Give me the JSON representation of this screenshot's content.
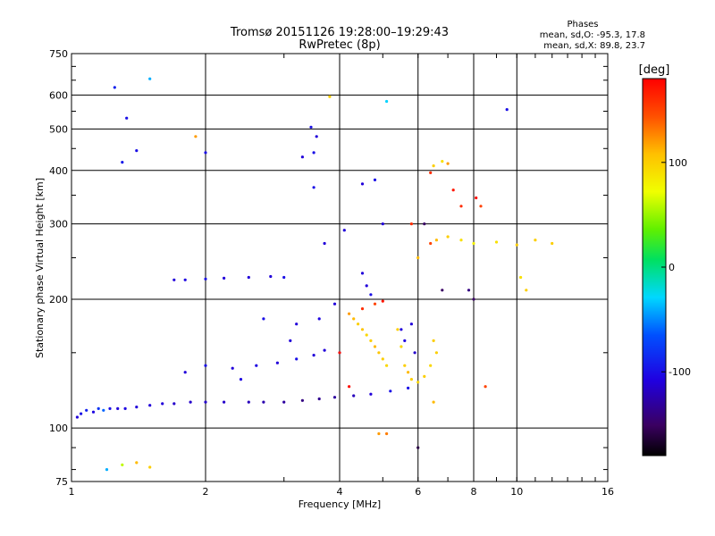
{
  "chart_data": {
    "type": "scatter",
    "title": "Tromsø 20151126 19:28:00–19:29:43",
    "subtitle": "RwPretec (8p)",
    "xlabel": "Frequency [MHz]",
    "ylabel": "Stationary phase Virtual Height [km]",
    "x_scale": "log",
    "y_scale": "log",
    "xlim": [
      1,
      16
    ],
    "ylim": [
      75,
      750
    ],
    "x_ticks": [
      1,
      2,
      4,
      6,
      8,
      10,
      16
    ],
    "x_tick_labels": [
      "1",
      "2",
      "4",
      "6",
      "8",
      "10",
      "16"
    ],
    "y_ticks": [
      75,
      100,
      200,
      300,
      400,
      500,
      600,
      750
    ],
    "y_tick_labels": [
      "75",
      "100",
      "200",
      "300",
      "400",
      "500",
      "600",
      "750"
    ],
    "grid": true,
    "phase_info": {
      "title": "Phases",
      "line_o": "mean, sd,O: -95.3, 17.8",
      "line_x": "mean, sd,X: 89.8, 23.7"
    },
    "colorbar": {
      "label": "[deg]",
      "ticks": [
        100,
        0,
        -100
      ],
      "tick_labels": [
        "100",
        "0",
        "-100"
      ],
      "range": [
        -180,
        180
      ]
    },
    "series": [
      {
        "points": [
          [
            1.03,
            106,
            -110
          ],
          [
            1.05,
            108,
            -100
          ],
          [
            1.08,
            110,
            -90
          ],
          [
            1.12,
            109,
            -105
          ],
          [
            1.15,
            111,
            -80
          ],
          [
            1.18,
            110,
            -60
          ],
          [
            1.22,
            111,
            -100
          ],
          [
            1.27,
            111,
            -110
          ],
          [
            1.32,
            111,
            -105
          ],
          [
            1.4,
            112,
            -110
          ],
          [
            1.5,
            113,
            -110
          ],
          [
            1.6,
            114,
            -110
          ],
          [
            1.7,
            114,
            -115
          ],
          [
            1.85,
            115,
            -115
          ],
          [
            2.0,
            115,
            -115
          ],
          [
            2.2,
            115,
            -115
          ],
          [
            2.5,
            115,
            -120
          ],
          [
            2.7,
            115,
            -125
          ],
          [
            3.0,
            115,
            -130
          ],
          [
            3.3,
            116,
            -140
          ],
          [
            3.6,
            117,
            -135
          ],
          [
            3.9,
            118,
            -130
          ],
          [
            4.3,
            119,
            -120
          ],
          [
            4.7,
            120,
            -110
          ],
          [
            5.2,
            122,
            -100
          ],
          [
            5.7,
            124,
            -100
          ],
          [
            1.7,
            222,
            -110
          ],
          [
            1.8,
            222,
            -105
          ],
          [
            2.0,
            223,
            -100
          ],
          [
            2.2,
            224,
            -110
          ],
          [
            2.5,
            225,
            -110
          ],
          [
            2.8,
            226,
            -110
          ],
          [
            3.0,
            225,
            -100
          ],
          [
            1.4,
            445,
            -100
          ],
          [
            1.3,
            418,
            -95
          ],
          [
            1.33,
            530,
            -100
          ],
          [
            1.25,
            625,
            -90
          ],
          [
            1.8,
            135,
            -110
          ],
          [
            2.0,
            140,
            -100
          ],
          [
            2.3,
            138,
            -110
          ],
          [
            2.6,
            140,
            -105
          ],
          [
            2.9,
            142,
            -110
          ],
          [
            3.2,
            145,
            -100
          ],
          [
            3.5,
            148,
            -110
          ],
          [
            3.7,
            152,
            -110
          ],
          [
            4.0,
            150,
            -105
          ],
          [
            3.3,
            430,
            -110
          ],
          [
            3.5,
            440,
            -100
          ],
          [
            3.45,
            505,
            -100
          ],
          [
            3.55,
            480,
            -110
          ],
          [
            3.5,
            365,
            -100
          ],
          [
            3.7,
            270,
            -110
          ],
          [
            4.1,
            290,
            -110
          ],
          [
            4.5,
            372,
            -110
          ],
          [
            4.8,
            380,
            -100
          ],
          [
            5.0,
            300,
            -110
          ],
          [
            4.5,
            230,
            -110
          ],
          [
            4.6,
            215,
            -110
          ],
          [
            4.7,
            205,
            -100
          ],
          [
            3.9,
            195,
            -110
          ],
          [
            3.6,
            180,
            -105
          ],
          [
            3.2,
            175,
            -110
          ],
          [
            5.5,
            170,
            -110
          ],
          [
            5.6,
            160,
            -105
          ],
          [
            5.8,
            175,
            -110
          ],
          [
            5.9,
            150,
            -115
          ],
          [
            4.2,
            185,
            120
          ],
          [
            4.3,
            180,
            110
          ],
          [
            4.4,
            175,
            100
          ],
          [
            4.5,
            170,
            105
          ],
          [
            4.6,
            165,
            95
          ],
          [
            4.7,
            160,
            100
          ],
          [
            4.8,
            155,
            110
          ],
          [
            4.9,
            150,
            105
          ],
          [
            5.0,
            145,
            100
          ],
          [
            5.1,
            140,
            95
          ],
          [
            5.4,
            170,
            100
          ],
          [
            5.5,
            155,
            95
          ],
          [
            5.6,
            140,
            100
          ],
          [
            5.7,
            135,
            110
          ],
          [
            5.8,
            130,
            100
          ],
          [
            6.0,
            128,
            95
          ],
          [
            6.2,
            132,
            100
          ],
          [
            6.4,
            140,
            95
          ],
          [
            6.6,
            150,
            100
          ],
          [
            6.5,
            160,
            100
          ],
          [
            6.4,
            270,
            150
          ],
          [
            6.6,
            275,
            110
          ],
          [
            7.0,
            280,
            100
          ],
          [
            7.5,
            275,
            90
          ],
          [
            8.0,
            270,
            80
          ],
          [
            9.0,
            272,
            90
          ],
          [
            10,
            268,
            100
          ],
          [
            11,
            275,
            100
          ],
          [
            12,
            270,
            100
          ],
          [
            6.5,
            410,
            100
          ],
          [
            6.8,
            420,
            90
          ],
          [
            7.0,
            415,
            120
          ],
          [
            6.4,
            395,
            160
          ],
          [
            3.8,
            595,
            100
          ],
          [
            4.5,
            190,
            160
          ],
          [
            4.8,
            195,
            150
          ],
          [
            5.0,
            198,
            170
          ],
          [
            4.0,
            150,
            170
          ],
          [
            4.2,
            125,
            175
          ],
          [
            7.2,
            360,
            170
          ],
          [
            7.5,
            330,
            160
          ],
          [
            8.1,
            345,
            175
          ],
          [
            8.3,
            330,
            150
          ],
          [
            7.8,
            210,
            -140
          ],
          [
            8.0,
            200,
            -150
          ],
          [
            6.8,
            210,
            -150
          ],
          [
            6.2,
            300,
            -150
          ],
          [
            5.8,
            300,
            160
          ],
          [
            1.2,
            80,
            -40
          ],
          [
            1.3,
            82,
            60
          ],
          [
            1.4,
            83,
            110
          ],
          [
            1.5,
            81,
            100
          ],
          [
            4.9,
            97,
            120
          ],
          [
            5.1,
            97,
            130
          ],
          [
            6.0,
            90,
            -160
          ],
          [
            8.5,
            125,
            150
          ],
          [
            6.5,
            115,
            110
          ],
          [
            5.1,
            580,
            -30
          ],
          [
            10.5,
            210,
            100
          ],
          [
            10.2,
            225,
            90
          ],
          [
            9.5,
            555,
            -100
          ],
          [
            2.0,
            440,
            -100
          ],
          [
            1.5,
            655,
            -40
          ],
          [
            1.9,
            480,
            120
          ],
          [
            6.0,
            250,
            110
          ],
          [
            2.7,
            180,
            -100
          ],
          [
            3.1,
            160,
            -110
          ],
          [
            2.4,
            130,
            -105
          ]
        ]
      }
    ]
  }
}
